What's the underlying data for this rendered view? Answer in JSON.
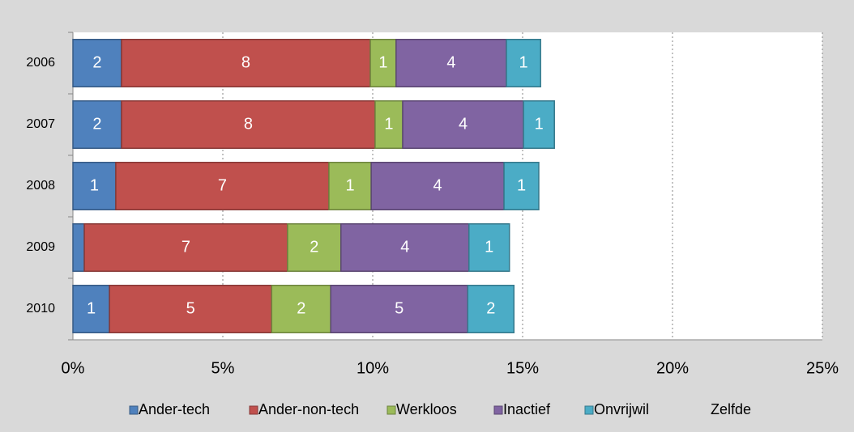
{
  "chart_data": {
    "type": "stacked-bar-horizontal",
    "categories": [
      "2006",
      "2007",
      "2008",
      "2009",
      "2010"
    ],
    "series": [
      {
        "name": "Ander-tech",
        "color": "#4f81bd",
        "values": [
          1.62,
          1.62,
          1.43,
          0.38,
          1.22
        ],
        "value_labels": [
          "2",
          "2",
          "1",
          null,
          "1"
        ]
      },
      {
        "name": "Ander-non-tech",
        "color": "#c0504d",
        "values": [
          8.3,
          8.46,
          7.11,
          6.78,
          5.41
        ],
        "value_labels": [
          "8",
          "8",
          "7",
          "7",
          "5"
        ]
      },
      {
        "name": "Werkloos",
        "color": "#9bbb59",
        "values": [
          0.86,
          0.92,
          1.41,
          1.78,
          1.97
        ],
        "value_labels": [
          "1",
          "1",
          "1",
          "2",
          "2"
        ]
      },
      {
        "name": "Inactief",
        "color": "#8064a2",
        "values": [
          3.68,
          4.03,
          4.43,
          4.27,
          4.57
        ],
        "value_labels": [
          "4",
          "4",
          "4",
          "4",
          "5"
        ]
      },
      {
        "name": "Onvrijwil",
        "color": "#4bacc6",
        "values": [
          1.14,
          1.03,
          1.16,
          1.35,
          1.54
        ],
        "value_labels": [
          "1",
          "1",
          "1",
          "1",
          "2"
        ]
      },
      {
        "name": "Zelfde",
        "color": "none",
        "values": [
          null,
          null,
          null,
          null,
          null
        ]
      }
    ],
    "xlim": [
      0,
      25
    ],
    "xticks": [
      {
        "value": 0,
        "label": "0%"
      },
      {
        "value": 5,
        "label": "5%"
      },
      {
        "value": 10,
        "label": "10%"
      },
      {
        "value": 15,
        "label": "15%"
      },
      {
        "value": 20,
        "label": "20%"
      },
      {
        "value": 25,
        "label": "25%"
      }
    ],
    "grid": true,
    "legend": "bottom"
  }
}
